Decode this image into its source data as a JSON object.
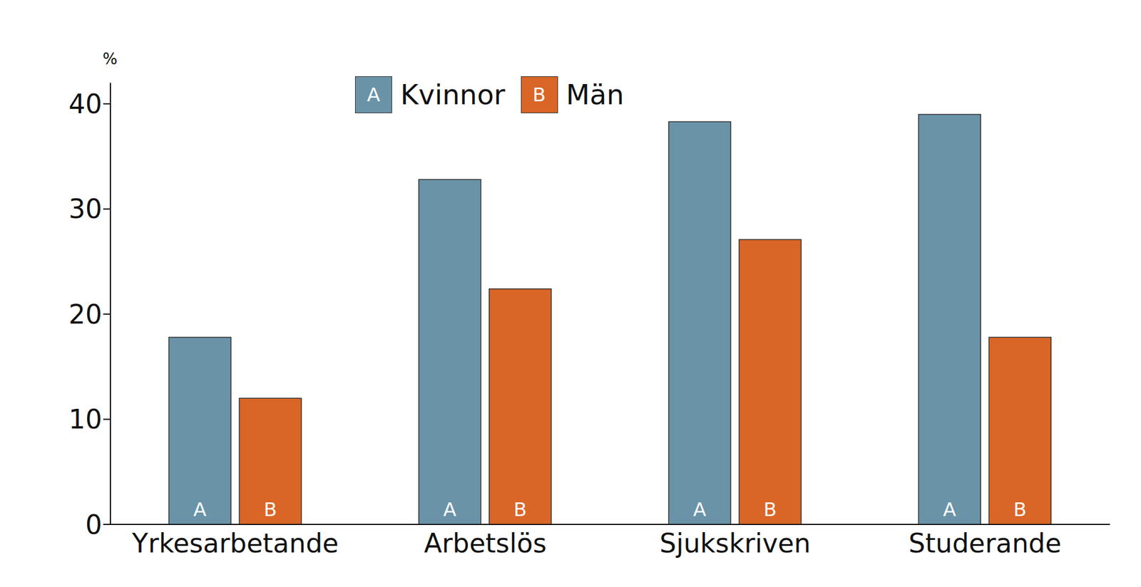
{
  "chart_data": {
    "type": "bar",
    "y_label": "%",
    "categories": [
      "Yrkesarbetande",
      "Arbetslös",
      "Sjukskriven",
      "Studerande"
    ],
    "series": [
      {
        "name": "Kvinnor",
        "label": "A",
        "color": "#6a93a8",
        "values": [
          17.8,
          32.8,
          38.3,
          39.0
        ]
      },
      {
        "name": "Män",
        "label": "B",
        "color": "#d96527",
        "values": [
          12.0,
          22.4,
          27.1,
          17.8
        ]
      }
    ],
    "ylim": [
      0,
      42
    ],
    "yticks": [
      0,
      10,
      20,
      30,
      40
    ],
    "grid": false,
    "legend": "top",
    "data_labels": false
  }
}
